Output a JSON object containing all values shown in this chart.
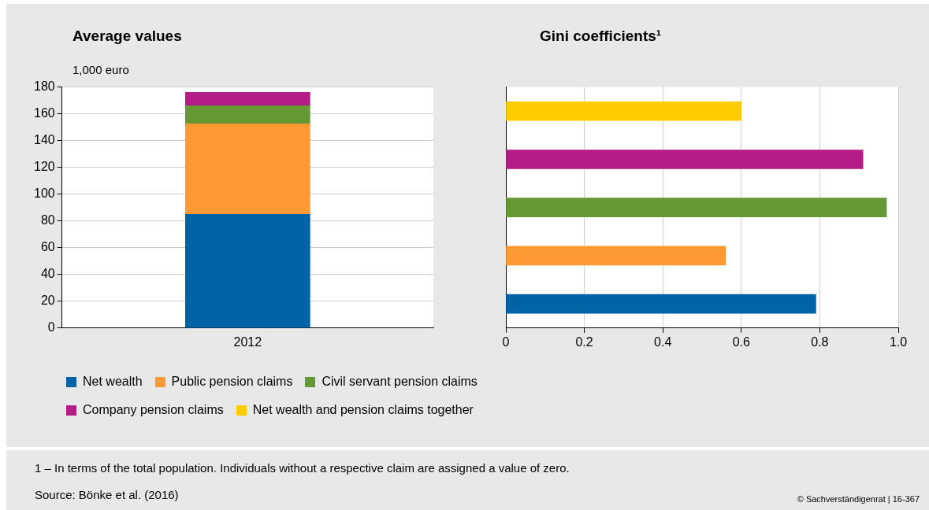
{
  "chart_data": [
    {
      "type": "bar",
      "title": "Average values",
      "ylabel": "1,000 euro",
      "stacked": true,
      "categories": [
        "2012"
      ],
      "series": [
        {
          "name": "Net wealth",
          "color": "#0063a6",
          "values": [
            85
          ]
        },
        {
          "name": "Public pension claims",
          "color": "#ff9933",
          "values": [
            67.5
          ]
        },
        {
          "name": "Civil servant pension claims",
          "color": "#669933",
          "values": [
            13.5
          ]
        },
        {
          "name": "Company pension claims",
          "color": "#b41d87",
          "values": [
            10
          ]
        }
      ],
      "ylim": [
        0,
        180
      ],
      "yticks": [
        0,
        20,
        40,
        60,
        80,
        100,
        120,
        140,
        160,
        180
      ],
      "grid": "y",
      "legend": "bottom"
    },
    {
      "type": "bar",
      "title": "Gini coefficients¹",
      "orientation": "horizontal",
      "categories": [
        null,
        null,
        null,
        null,
        null
      ],
      "series": [
        {
          "name": "Net wealth and pension claims together",
          "color": "#ffcc00",
          "values": [
            0.6,
            null,
            null,
            null,
            null
          ]
        },
        {
          "color": "#b41d87",
          "values": [
            null,
            0.91,
            null,
            null,
            null
          ]
        },
        {
          "color": "#669933",
          "values": [
            null,
            null,
            0.97,
            null,
            null
          ]
        },
        {
          "color": "#ff9933",
          "values": [
            null,
            null,
            null,
            0.56,
            null
          ]
        },
        {
          "color": "#0063a6",
          "values": [
            null,
            null,
            null,
            null,
            0.79
          ]
        }
      ],
      "xlim": [
        0,
        1
      ],
      "xticks": [
        0,
        0.2,
        0.4,
        0.6,
        0.8,
        {
          "value": 1,
          "label": "1.0"
        }
      ],
      "grid": "x",
      "legend": "bottom",
      "annotations": [
        "1 –  In terms of the total population. Individuals without a respective claim are assigned a value of zero.",
        "Source: Bönke et al. (2016)",
        "© Sachverständigenrat | 16-367"
      ]
    }
  ]
}
